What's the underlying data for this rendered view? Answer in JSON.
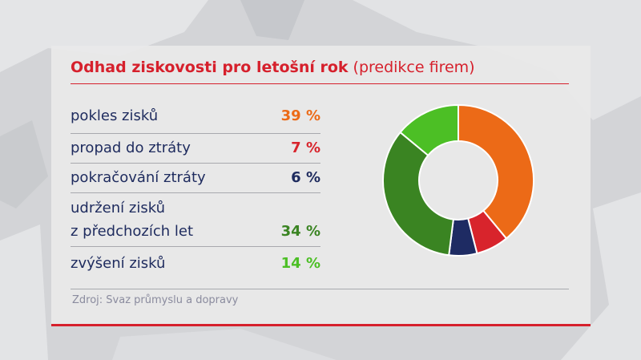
{
  "title": "Odhad ziskovosti pro letošní rok",
  "subtitle": "(predikce firem)",
  "source": "Zdroj: Svaz průmyslu a dopravy",
  "colors": {
    "accent": "#d6202c",
    "label_text": "#1e2b5e",
    "source_text": "#8a8b9e"
  },
  "chart_data": {
    "type": "pie",
    "subtype": "donut",
    "categories": [
      "pokles zisků",
      "propad do ztráty",
      "pokračování ztráty",
      "udržení zisků z předchozích let",
      "zvýšení zisků"
    ],
    "values": [
      39,
      7,
      6,
      34,
      14
    ],
    "unit": "%",
    "colors": [
      "#ec6a17",
      "#d8242c",
      "#1e2b63",
      "#3a8422",
      "#4cbf25"
    ],
    "legend": [
      {
        "label_lines": [
          "pokles zisků"
        ],
        "value_label": "39 %"
      },
      {
        "label_lines": [
          "propad do ztráty"
        ],
        "value_label": "7 %"
      },
      {
        "label_lines": [
          "pokračování ztráty"
        ],
        "value_label": "6 %"
      },
      {
        "label_lines": [
          "udržení zisků",
          "z předchozích let"
        ],
        "value_label": "34 %"
      },
      {
        "label_lines": [
          "zvýšení zisků"
        ],
        "value_label": "14 %"
      }
    ]
  }
}
